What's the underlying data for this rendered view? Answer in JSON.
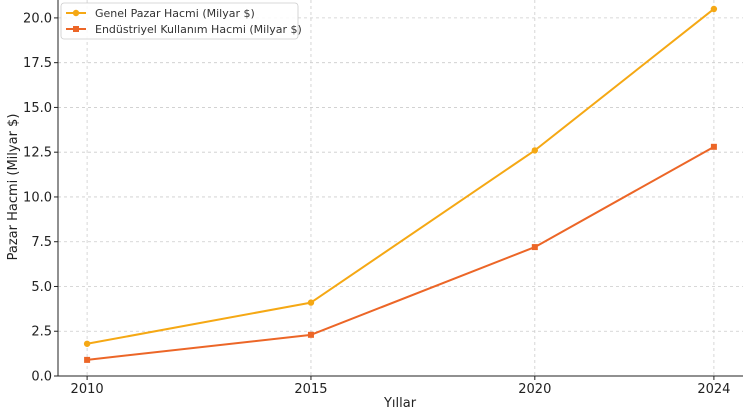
{
  "chart_data": {
    "type": "line",
    "xlabel": "Yıllar",
    "ylabel": "Pazar Hacmi (Milyar $)",
    "x": [
      2010,
      2015,
      2020,
      2024
    ],
    "xticks": [
      "2010",
      "2015",
      "2020",
      "2024"
    ],
    "xlim": [
      2009.35,
      2024.65
    ],
    "ylim": [
      0,
      21
    ],
    "yticks": [
      "0.0",
      "2.5",
      "5.0",
      "7.5",
      "10.0",
      "12.5",
      "15.0",
      "17.5",
      "20.0"
    ],
    "grid": true,
    "legend_position": "top-left",
    "series": [
      {
        "name": "Genel Pazar Hacmi (Milyar $)",
        "values": [
          1.8,
          4.1,
          12.6,
          20.5
        ],
        "color": "#f5a814",
        "marker": "circle"
      },
      {
        "name": "Endüstriyel Kullanım Hacmi (Milyar $)",
        "values": [
          0.9,
          2.3,
          7.2,
          12.8
        ],
        "color": "#ec6627",
        "marker": "square"
      }
    ]
  }
}
